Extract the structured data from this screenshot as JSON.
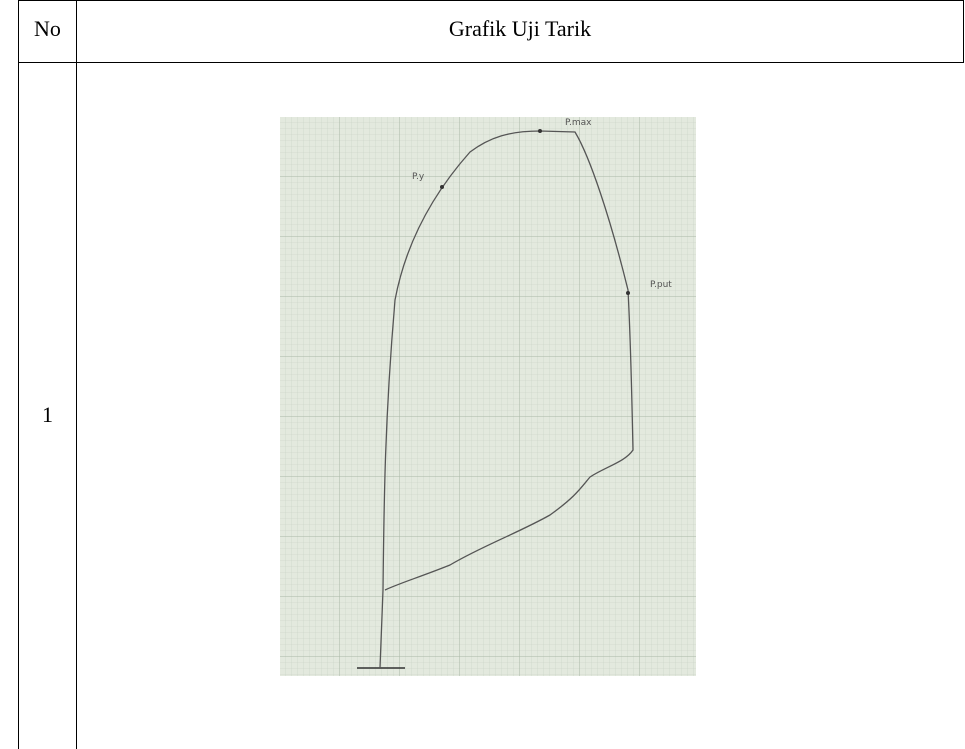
{
  "table": {
    "header": [
      "No",
      "Grafik Uji Tarik"
    ],
    "rows": [
      [
        "1"
      ]
    ]
  },
  "figure": {
    "labels": [
      "P.y",
      "P.max",
      "P.put"
    ]
  }
}
